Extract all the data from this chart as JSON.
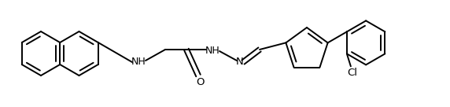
{
  "background_color": "#ffffff",
  "line_color": "#000000",
  "line_width": 1.4,
  "figure_width": 5.72,
  "figure_height": 1.36,
  "dpi": 100,
  "xlim": [
    0,
    572
  ],
  "ylim": [
    0,
    136
  ]
}
